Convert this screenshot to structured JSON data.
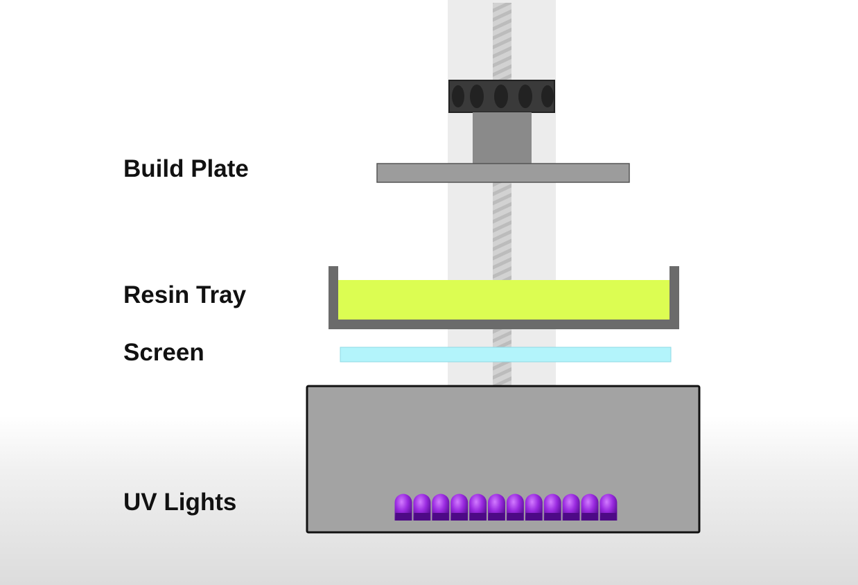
{
  "labels": {
    "build_plate": "Build Plate",
    "resin_tray": "Resin Tray",
    "screen": "Screen",
    "uv_lights": "UV Lights"
  },
  "colors": {
    "column": "#ececec",
    "leadscrew": "#c8c8c8",
    "nut_block": "#3a3a3a",
    "arm": "#8a8a8a",
    "build_plate": "#9c9c9c",
    "tray_wall": "#6b6b6b",
    "resin": "#dcfd52",
    "screen": "#b3f4fb",
    "base": "#a3a3a3",
    "uv_led": "#8a1fd0"
  },
  "uv_led_count": 12
}
